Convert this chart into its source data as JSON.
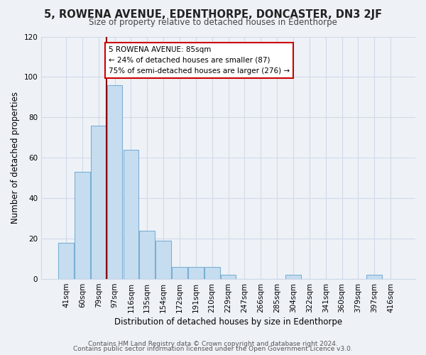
{
  "title": "5, ROWENA AVENUE, EDENTHORPE, DONCASTER, DN3 2JF",
  "subtitle": "Size of property relative to detached houses in Edenthorpe",
  "xlabel": "Distribution of detached houses by size in Edenthorpe",
  "ylabel": "Number of detached properties",
  "bar_labels": [
    "41sqm",
    "60sqm",
    "79sqm",
    "97sqm",
    "116sqm",
    "135sqm",
    "154sqm",
    "172sqm",
    "191sqm",
    "210sqm",
    "229sqm",
    "247sqm",
    "266sqm",
    "285sqm",
    "304sqm",
    "322sqm",
    "341sqm",
    "360sqm",
    "379sqm",
    "397sqm",
    "416sqm"
  ],
  "bar_values": [
    18,
    53,
    76,
    96,
    64,
    24,
    19,
    6,
    6,
    6,
    2,
    0,
    0,
    0,
    2,
    0,
    0,
    0,
    0,
    2,
    0
  ],
  "bar_color": "#c6ddf0",
  "bar_edge_color": "#7aafd4",
  "ylim": [
    0,
    120
  ],
  "yticks": [
    0,
    20,
    40,
    60,
    80,
    100,
    120
  ],
  "red_line_x": 2.5,
  "annotation_text": "5 ROWENA AVENUE: 85sqm\n← 24% of detached houses are smaller (87)\n75% of semi-detached houses are larger (276) →",
  "footer_line1": "Contains HM Land Registry data © Crown copyright and database right 2024.",
  "footer_line2": "Contains public sector information licensed under the Open Government Licence v3.0.",
  "background_color": "#eef2f7",
  "plot_bg_color": "#eef2f7",
  "grid_color": "#d0dae8",
  "title_fontsize": 10.5,
  "subtitle_fontsize": 8.5,
  "axis_label_fontsize": 8.5,
  "tick_fontsize": 7.5,
  "annotation_fontsize": 7.5,
  "footer_fontsize": 6.5
}
